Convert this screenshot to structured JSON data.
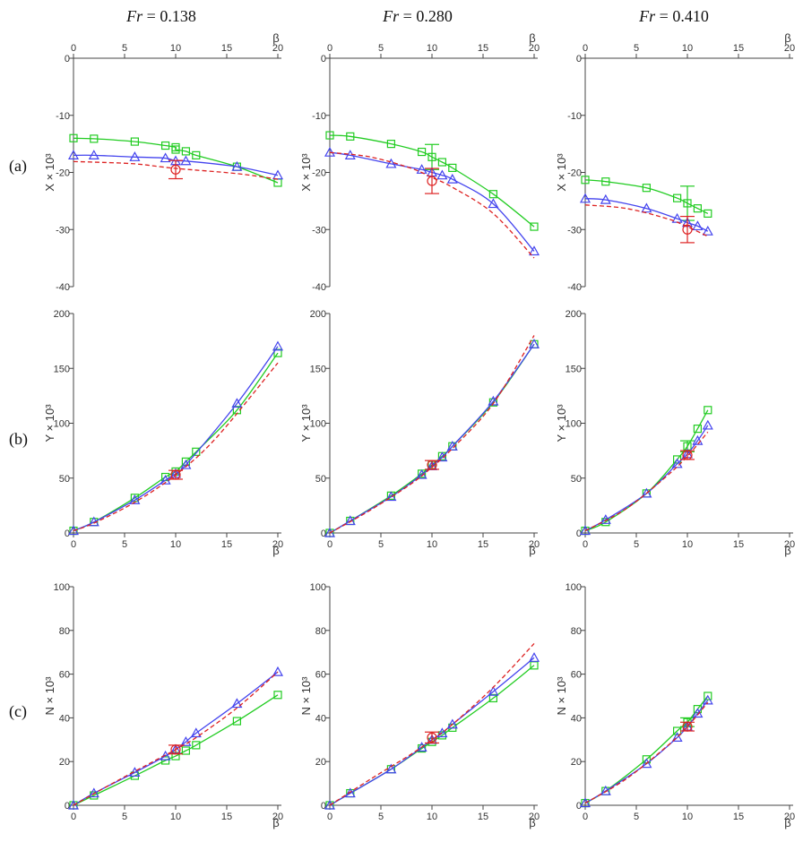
{
  "column_titles": [
    {
      "pre": "Fr",
      "val": " = 0.138"
    },
    {
      "pre": "Fr",
      "val": " = 0.280"
    },
    {
      "pre": "Fr",
      "val": " = 0.410"
    }
  ],
  "row_labels": [
    "(a)",
    "(b)",
    "(c)"
  ],
  "colors": {
    "green": "#22cc22",
    "blue": "#4444ee",
    "red": "#dd2222",
    "axis": "#444444"
  },
  "chart_data": [
    {
      "type": "line",
      "panel": "a1",
      "xlabel": "β",
      "ylabel": "X × 10³",
      "xaxis": "top",
      "xlim": [
        0,
        20
      ],
      "ylim": [
        -40,
        0
      ],
      "xticks": [
        0,
        5,
        10,
        15,
        20
      ],
      "yticks": [
        0,
        -10,
        -20,
        -30,
        -40
      ],
      "series": [
        {
          "color": "green",
          "marker": "square",
          "x": [
            0,
            2,
            6,
            9,
            10,
            10,
            11,
            12,
            16,
            20
          ],
          "y": [
            -14,
            -14.1,
            -14.6,
            -15.3,
            -15.6,
            -16,
            -16.3,
            -17,
            -19,
            -21.8
          ]
        },
        {
          "color": "blue",
          "marker": "triangle",
          "x": [
            0,
            2,
            6,
            9,
            10,
            11,
            16,
            20
          ],
          "y": [
            -17,
            -17,
            -17.3,
            -17.5,
            -18,
            -18,
            -19,
            -20.5
          ]
        },
        {
          "color": "red",
          "marker": "circle",
          "dashed": true,
          "x": [
            0,
            2,
            6,
            10,
            16,
            20
          ],
          "y": [
            -18.1,
            -18.2,
            -18.5,
            -19.3,
            -20.2,
            -21.2
          ],
          "point": {
            "x": 10,
            "y": -19.5,
            "err": 1.6
          }
        }
      ]
    },
    {
      "type": "line",
      "panel": "a2",
      "xlabel": "β",
      "ylabel": "X × 10³",
      "xaxis": "top",
      "xlim": [
        0,
        20
      ],
      "ylim": [
        -40,
        0
      ],
      "xticks": [
        0,
        5,
        10,
        15,
        20
      ],
      "yticks": [
        0,
        -10,
        -20,
        -30,
        -40
      ],
      "series": [
        {
          "color": "green",
          "marker": "square",
          "x": [
            0,
            2,
            6,
            9,
            10,
            11,
            12,
            16,
            20
          ],
          "y": [
            -13.5,
            -13.7,
            -15,
            -16.4,
            -17.3,
            -18.2,
            -19.2,
            -23.8,
            -29.5
          ],
          "point": {
            "x": 10,
            "y": -17.3,
            "err": 2.2
          }
        },
        {
          "color": "blue",
          "marker": "triangle",
          "x": [
            0,
            2,
            6,
            9,
            10,
            11,
            12,
            16,
            20
          ],
          "y": [
            -16.5,
            -17,
            -18.5,
            -19.5,
            -20,
            -20.5,
            -21.2,
            -25.5,
            -33.8
          ]
        },
        {
          "color": "red",
          "marker": "circle",
          "dashed": true,
          "x": [
            0,
            4,
            8,
            10,
            12,
            16,
            20
          ],
          "y": [
            -16.5,
            -17.3,
            -19.3,
            -20.9,
            -22.6,
            -27.2,
            -35
          ],
          "point": {
            "x": 10,
            "y": -21.5,
            "err": 2.2
          }
        }
      ]
    },
    {
      "type": "line",
      "panel": "a3",
      "xlabel": "β",
      "ylabel": "X × 10³",
      "xaxis": "top",
      "xlim": [
        0,
        20
      ],
      "ylim": [
        -40,
        0
      ],
      "xticks": [
        0,
        5,
        10,
        15,
        20
      ],
      "yticks": [
        0,
        -10,
        -20,
        -30,
        -40
      ],
      "series": [
        {
          "color": "green",
          "marker": "square",
          "x": [
            0,
            2,
            6,
            9,
            10,
            11,
            12
          ],
          "y": [
            -21.3,
            -21.6,
            -22.7,
            -24.5,
            -25.4,
            -26.3,
            -27.2
          ],
          "point": {
            "x": 10,
            "y": -25.4,
            "err": 3
          }
        },
        {
          "color": "blue",
          "marker": "triangle",
          "x": [
            0,
            2,
            6,
            9,
            10,
            11,
            12
          ],
          "y": [
            -24.6,
            -24.8,
            -26.3,
            -28.1,
            -28.8,
            -29.4,
            -30.3
          ]
        },
        {
          "color": "red",
          "marker": "circle",
          "dashed": true,
          "x": [
            0,
            4,
            8,
            10,
            12
          ],
          "y": [
            -25.7,
            -26.3,
            -28.1,
            -29.5,
            -31.2
          ],
          "point": {
            "x": 10,
            "y": -30,
            "err": 2.3
          }
        }
      ]
    },
    {
      "type": "line",
      "panel": "b1",
      "xlabel": "β",
      "ylabel": "Y × 10³",
      "xaxis": "bottom",
      "xlim": [
        0,
        20
      ],
      "ylim": [
        0,
        200
      ],
      "xticks": [
        0,
        5,
        10,
        15,
        20
      ],
      "yticks": [
        0,
        50,
        100,
        150,
        200
      ],
      "series": [
        {
          "color": "green",
          "marker": "square",
          "x": [
            0,
            2,
            6,
            9,
            10,
            11,
            12,
            16,
            20
          ],
          "y": [
            2,
            10,
            32,
            51,
            56,
            65,
            74,
            112,
            164
          ]
        },
        {
          "color": "blue",
          "marker": "triangle",
          "x": [
            0,
            2,
            6,
            9,
            10,
            11,
            16,
            20
          ],
          "y": [
            2,
            10,
            30,
            48,
            54,
            62,
            118,
            170
          ]
        },
        {
          "color": "red",
          "marker": "circle",
          "dashed": true,
          "x": [
            0,
            2,
            6,
            10,
            14,
            20
          ],
          "y": [
            2,
            9,
            28,
            53,
            87,
            155
          ],
          "point": {
            "x": 10,
            "y": 53,
            "err": 4
          }
        }
      ]
    },
    {
      "type": "line",
      "panel": "b2",
      "xlabel": "β",
      "ylabel": "Y × 10³",
      "xaxis": "bottom",
      "xlim": [
        0,
        20
      ],
      "ylim": [
        0,
        200
      ],
      "xticks": [
        0,
        5,
        10,
        15,
        20
      ],
      "yticks": [
        0,
        50,
        100,
        150,
        200
      ],
      "series": [
        {
          "color": "green",
          "marker": "square",
          "x": [
            0,
            2,
            6,
            9,
            10,
            11,
            12,
            16,
            20
          ],
          "y": [
            0,
            11,
            34,
            54,
            62,
            70,
            79,
            119,
            172
          ]
        },
        {
          "color": "blue",
          "marker": "triangle",
          "x": [
            0,
            2,
            6,
            9,
            10,
            11,
            12,
            16,
            20
          ],
          "y": [
            0,
            11,
            33,
            53,
            61,
            69,
            79,
            120,
            172
          ]
        },
        {
          "color": "red",
          "marker": "circle",
          "dashed": true,
          "x": [
            0,
            4,
            8,
            10,
            12,
            16,
            20
          ],
          "y": [
            0,
            21,
            45,
            60,
            77,
            118,
            180
          ],
          "point": {
            "x": 10,
            "y": 62,
            "err": 4
          }
        }
      ]
    },
    {
      "type": "line",
      "panel": "b3",
      "xlabel": "β",
      "ylabel": "Y × 10³",
      "xaxis": "bottom",
      "xlim": [
        0,
        20
      ],
      "ylim": [
        0,
        200
      ],
      "xticks": [
        0,
        5,
        10,
        15,
        20
      ],
      "yticks": [
        0,
        50,
        100,
        150,
        200
      ],
      "series": [
        {
          "color": "green",
          "marker": "square",
          "x": [
            0,
            2,
            6,
            9,
            10,
            11,
            12
          ],
          "y": [
            2,
            10,
            36,
            67,
            79,
            95,
            112
          ],
          "point": {
            "x": 10,
            "y": 79,
            "err": 5
          }
        },
        {
          "color": "blue",
          "marker": "triangle",
          "x": [
            0,
            2,
            6,
            9,
            10,
            11,
            12
          ],
          "y": [
            2,
            12,
            36,
            63,
            72,
            84,
            98
          ]
        },
        {
          "color": "red",
          "marker": "circle",
          "dashed": true,
          "x": [
            0,
            4,
            8,
            10,
            12
          ],
          "y": [
            2,
            22,
            52,
            70,
            92
          ],
          "point": {
            "x": 10,
            "y": 71,
            "err": 4
          }
        }
      ]
    },
    {
      "type": "line",
      "panel": "c1",
      "xlabel": "β",
      "ylabel": "N × 10³",
      "xaxis": "bottom",
      "xlim": [
        0,
        20
      ],
      "ylim": [
        0,
        100
      ],
      "xticks": [
        0,
        5,
        10,
        15,
        20
      ],
      "yticks": [
        0,
        20,
        40,
        60,
        80,
        100
      ],
      "series": [
        {
          "color": "green",
          "marker": "square",
          "x": [
            0,
            2,
            6,
            9,
            10,
            11,
            12,
            16,
            20
          ],
          "y": [
            0,
            4.5,
            13.5,
            20.5,
            22.5,
            25,
            27.5,
            38.5,
            50.5
          ]
        },
        {
          "color": "blue",
          "marker": "triangle",
          "x": [
            0,
            2,
            6,
            9,
            10,
            11,
            12,
            16,
            20
          ],
          "y": [
            0,
            5.5,
            15,
            22.5,
            25.5,
            29,
            33,
            46.5,
            61
          ]
        },
        {
          "color": "red",
          "marker": "circle",
          "dashed": true,
          "x": [
            0,
            4,
            8,
            10,
            12,
            16,
            20
          ],
          "y": [
            0,
            10.5,
            20.5,
            25.5,
            31,
            44.5,
            61
          ],
          "point": {
            "x": 10,
            "y": 25.5,
            "err": 2
          }
        }
      ]
    },
    {
      "type": "line",
      "panel": "c2",
      "xlabel": "β",
      "ylabel": "N × 10³",
      "xaxis": "bottom",
      "xlim": [
        0,
        20
      ],
      "ylim": [
        0,
        100
      ],
      "xticks": [
        0,
        5,
        10,
        15,
        20
      ],
      "yticks": [
        0,
        20,
        40,
        60,
        80,
        100
      ],
      "series": [
        {
          "color": "green",
          "marker": "square",
          "x": [
            0,
            2,
            6,
            9,
            10,
            11,
            12,
            16,
            20
          ],
          "y": [
            0,
            5.5,
            16.5,
            26,
            29,
            32,
            35.5,
            49,
            64
          ]
        },
        {
          "color": "blue",
          "marker": "triangle",
          "x": [
            0,
            2,
            6,
            9,
            10,
            11,
            12,
            16,
            20
          ],
          "y": [
            0,
            5.5,
            16.5,
            26.5,
            30,
            33,
            37,
            52,
            67.5
          ]
        },
        {
          "color": "red",
          "marker": "circle",
          "dashed": true,
          "x": [
            0,
            4,
            8,
            10,
            12,
            16,
            20
          ],
          "y": [
            0,
            12,
            23.5,
            30,
            37,
            54,
            74
          ],
          "point": {
            "x": 10,
            "y": 31,
            "err": 2.5
          }
        }
      ]
    },
    {
      "type": "line",
      "panel": "c3",
      "xlabel": "β",
      "ylabel": "N × 10³",
      "xaxis": "bottom",
      "xlim": [
        0,
        20
      ],
      "ylim": [
        0,
        100
      ],
      "xticks": [
        0,
        5,
        10,
        15,
        20
      ],
      "yticks": [
        0,
        20,
        40,
        60,
        80,
        100
      ],
      "series": [
        {
          "color": "green",
          "marker": "square",
          "x": [
            0,
            2,
            6,
            9,
            10,
            11,
            12
          ],
          "y": [
            1,
            6.5,
            21,
            34,
            38,
            44,
            50
          ],
          "point": {
            "x": 10,
            "y": 38,
            "err": 2
          }
        },
        {
          "color": "blue",
          "marker": "triangle",
          "x": [
            0,
            2,
            6,
            9,
            10,
            11,
            12
          ],
          "y": [
            1,
            6.5,
            19,
            31,
            36,
            42,
            48
          ]
        },
        {
          "color": "red",
          "marker": "circle",
          "dashed": true,
          "x": [
            0,
            4,
            8,
            10,
            12
          ],
          "y": [
            1,
            12,
            27,
            36,
            47
          ],
          "point": {
            "x": 10,
            "y": 36,
            "err": 2
          }
        }
      ]
    }
  ]
}
